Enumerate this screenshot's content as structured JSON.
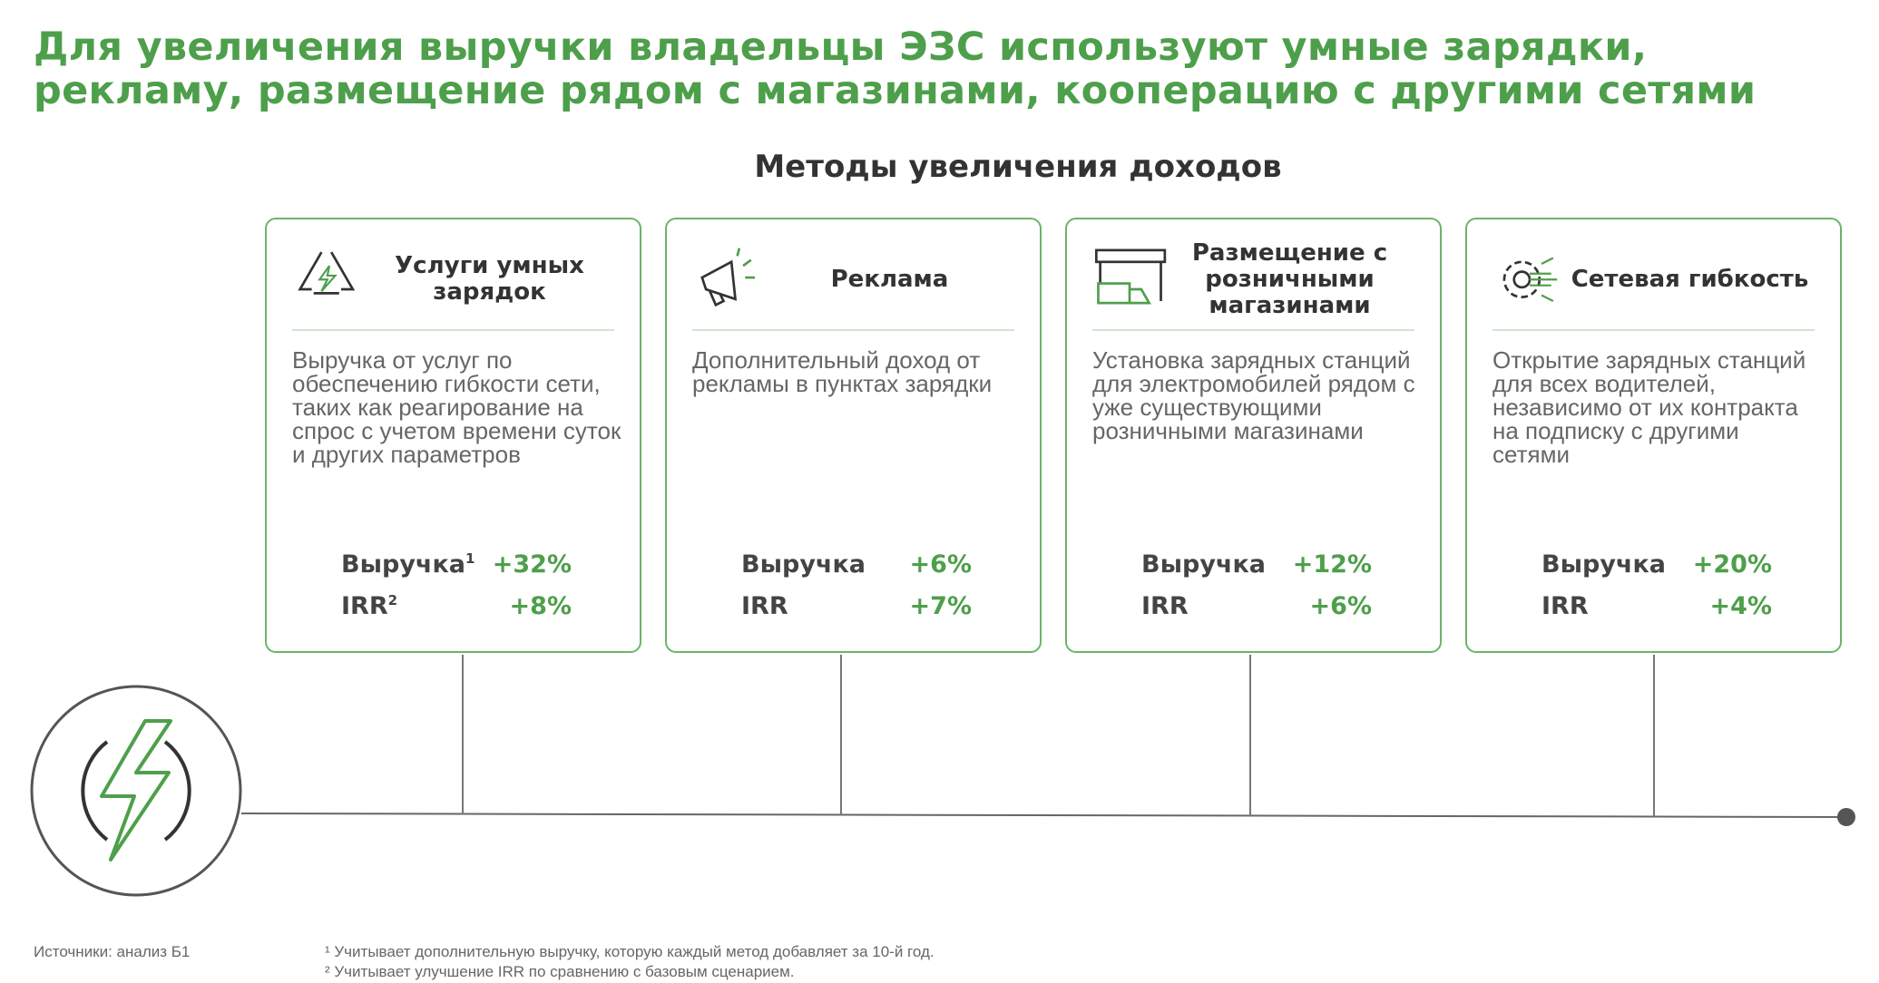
{
  "header": {
    "title_lines": [
      "Для увеличения выручки владельцы ЭЗС используют умные зарядки,",
      "рекламу, размещение рядом с магазинами, кооперацию с другими сетями"
    ],
    "subtitle": "Методы увеличения доходов"
  },
  "cards": [
    {
      "title": "Услуги умных зарядок",
      "description": "Выручка от услуг по обеспечению гибкости сети, таких как реагирование на спрос с учетом времени суток и других параметров",
      "metrics": [
        {
          "label": "Выручка",
          "note": "1",
          "value": "+32%"
        },
        {
          "label": "IRR",
          "note": "2",
          "value": "+8%"
        }
      ]
    },
    {
      "title": "Реклама",
      "description": "Дополнительный доход от рекламы в пунктах зарядки",
      "metrics": [
        {
          "label": "Выручка",
          "value": "+6%"
        },
        {
          "label": "IRR",
          "value": "+7%"
        }
      ]
    },
    {
      "title": "Размещение с розничными магазинами",
      "description": "Установка зарядных станций для электромобилей рядом с уже существующими розничными магазинами",
      "metrics": [
        {
          "label": "Выручка",
          "value": "+12%"
        },
        {
          "label": "IRR",
          "value": "+6%"
        }
      ]
    },
    {
      "title": "Сетевая гибкость",
      "description": "Открытие зарядных станций для всех водителей, независимо от их контракта на подписку с другими сетями",
      "metrics": [
        {
          "label": "Выручка",
          "value": "+20%"
        },
        {
          "label": "IRR",
          "value": "+4%"
        }
      ]
    }
  ],
  "footer": {
    "source": "Источники: анализ Б1",
    "notes": [
      "¹ Учитывает дополнительную выручку, которую каждый метод добавляет за 10-й год.",
      "² Учитывает улучшение IRR по сравнению с базовым сценарием."
    ]
  }
}
